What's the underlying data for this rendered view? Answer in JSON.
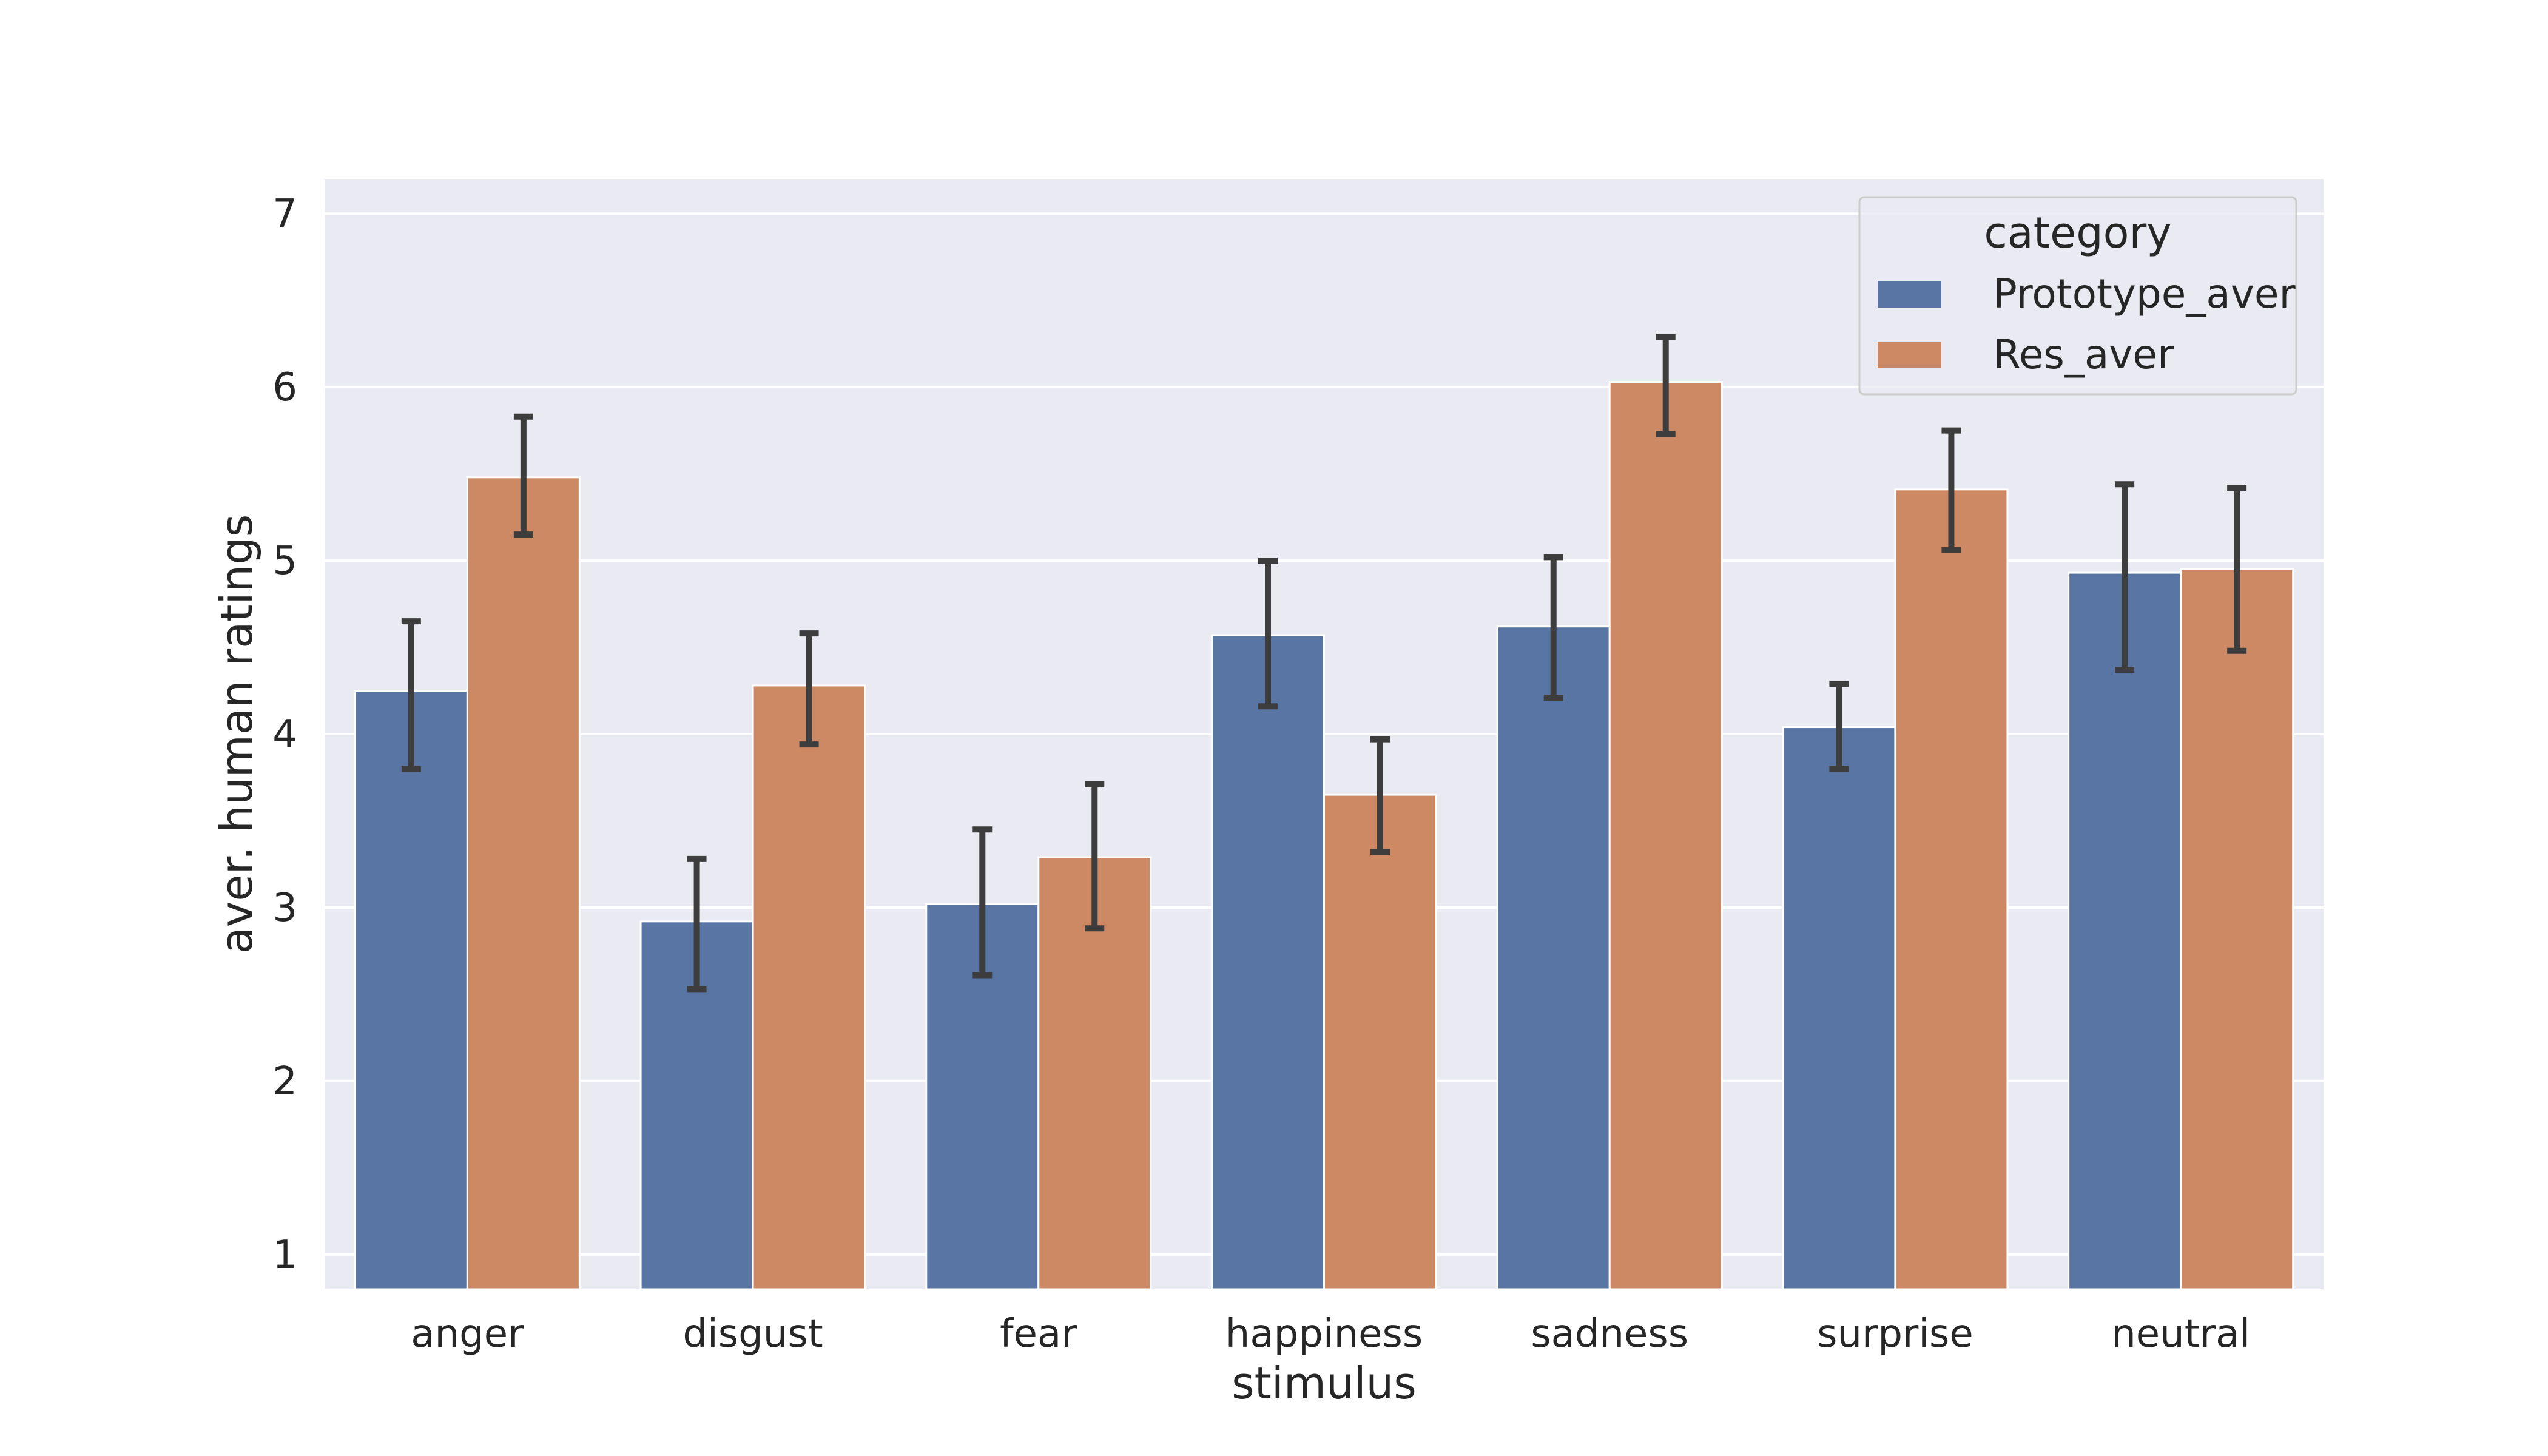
{
  "chart_data": {
    "type": "bar",
    "title": "",
    "xlabel": "stimulus",
    "ylabel": "aver. human ratings",
    "categories": [
      "anger",
      "disgust",
      "fear",
      "happiness",
      "sadness",
      "surprise",
      "neutral"
    ],
    "ylim": [
      0.8,
      7.2
    ],
    "yticks": [
      1,
      2,
      3,
      4,
      5,
      6,
      7
    ],
    "grid": true,
    "legend": {
      "title": "category",
      "placement": "top-right"
    },
    "series": [
      {
        "name": "Prototype_aver",
        "color": "#5875a4",
        "values": [
          4.25,
          2.92,
          3.02,
          4.57,
          4.62,
          4.04,
          4.93
        ],
        "error_low": [
          3.8,
          2.53,
          2.61,
          4.16,
          4.21,
          3.8,
          4.37
        ],
        "error_high": [
          4.65,
          3.28,
          3.45,
          5.0,
          5.02,
          4.29,
          5.44
        ]
      },
      {
        "name": "Res_aver",
        "color": "#cc8963",
        "values": [
          5.48,
          4.28,
          3.29,
          3.65,
          6.03,
          5.41,
          4.95
        ],
        "error_low": [
          5.15,
          3.94,
          2.88,
          3.32,
          5.73,
          5.06,
          4.48
        ],
        "error_high": [
          5.83,
          4.58,
          3.71,
          3.97,
          6.29,
          5.75,
          5.42
        ]
      }
    ]
  }
}
